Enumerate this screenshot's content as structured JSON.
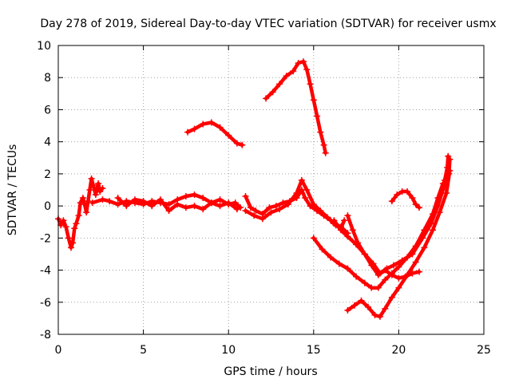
{
  "chart_data": {
    "type": "scatter",
    "title": "Day 278 of 2019, Sidereal Day-to-day VTEC variation (SDTVAR) for receiver usmx",
    "xlabel": "GPS time / hours",
    "ylabel": "SDTVAR / TECUs",
    "xlim": [
      0,
      25
    ],
    "ylim": [
      -8,
      10
    ],
    "xticks": [
      0,
      5,
      10,
      15,
      20,
      25
    ],
    "yticks": [
      -8,
      -6,
      -4,
      -2,
      0,
      2,
      4,
      6,
      8,
      10
    ],
    "grid": true,
    "legend": "none",
    "marker": "plus",
    "color": "#ff0000",
    "series": [
      {
        "points": [
          [
            0.0,
            -0.8
          ],
          [
            0.15,
            -1.2
          ],
          [
            0.3,
            -0.9
          ],
          [
            0.45,
            -1.3
          ],
          [
            0.6,
            -2.0
          ],
          [
            0.75,
            -2.6
          ],
          [
            0.85,
            -2.3
          ],
          [
            0.95,
            -1.4
          ],
          [
            1.05,
            -1.1
          ],
          [
            1.2,
            -0.6
          ],
          [
            1.3,
            0.2
          ],
          [
            1.45,
            0.5
          ],
          [
            1.55,
            0.1
          ],
          [
            1.65,
            -0.4
          ],
          [
            1.75,
            0.3
          ],
          [
            1.85,
            1.0
          ],
          [
            1.95,
            1.7
          ],
          [
            2.05,
            1.3
          ],
          [
            2.2,
            0.7
          ],
          [
            2.35,
            1.4
          ],
          [
            2.45,
            0.9
          ],
          [
            2.6,
            1.1
          ]
        ]
      },
      {
        "points": [
          [
            2.0,
            0.2
          ],
          [
            2.6,
            0.4
          ],
          [
            3.0,
            0.3
          ],
          [
            3.5,
            0.1
          ],
          [
            4.0,
            0.3
          ],
          [
            4.5,
            0.2
          ],
          [
            5.0,
            0.1
          ],
          [
            5.5,
            0.3
          ],
          [
            6.0,
            0.2
          ],
          [
            6.5,
            0.1
          ],
          [
            7.0,
            0.4
          ],
          [
            7.5,
            0.6
          ],
          [
            8.0,
            0.7
          ],
          [
            8.5,
            0.5
          ],
          [
            9.0,
            0.2
          ],
          [
            9.5,
            0.4
          ],
          [
            10.0,
            0.1
          ],
          [
            10.4,
            0.2
          ],
          [
            10.7,
            -0.1
          ]
        ]
      },
      {
        "points": [
          [
            3.5,
            0.5
          ],
          [
            4.0,
            0.0
          ],
          [
            4.5,
            0.4
          ],
          [
            5.0,
            0.3
          ],
          [
            5.5,
            0.0
          ],
          [
            6.0,
            0.4
          ],
          [
            6.5,
            -0.3
          ],
          [
            7.0,
            0.1
          ],
          [
            7.5,
            -0.1
          ],
          [
            8.0,
            0.0
          ],
          [
            8.5,
            -0.2
          ],
          [
            9.0,
            0.2
          ],
          [
            9.5,
            0.0
          ],
          [
            10.0,
            0.2
          ],
          [
            10.5,
            -0.2
          ]
        ]
      },
      {
        "points": [
          [
            11.0,
            0.6
          ],
          [
            11.3,
            -0.1
          ],
          [
            11.6,
            -0.3
          ],
          [
            12.0,
            -0.5
          ],
          [
            12.4,
            -0.1
          ],
          [
            12.8,
            0.0
          ],
          [
            13.2,
            0.2
          ],
          [
            13.6,
            0.3
          ],
          [
            14.0,
            0.5
          ],
          [
            14.3,
            1.0
          ],
          [
            14.5,
            0.5
          ],
          [
            14.8,
            0.0
          ],
          [
            15.2,
            -0.3
          ],
          [
            15.6,
            -0.6
          ],
          [
            16.0,
            -0.9
          ],
          [
            16.3,
            -1.2
          ],
          [
            16.6,
            -1.4
          ],
          [
            16.8,
            -0.9
          ]
        ]
      },
      {
        "points": [
          [
            11.0,
            -0.3
          ],
          [
            11.5,
            -0.6
          ],
          [
            12.0,
            -0.8
          ],
          [
            12.5,
            -0.4
          ],
          [
            13.0,
            -0.2
          ],
          [
            13.5,
            0.1
          ],
          [
            14.0,
            0.8
          ],
          [
            14.3,
            1.6
          ],
          [
            14.6,
            1.0
          ],
          [
            15.0,
            0.1
          ],
          [
            15.4,
            -0.3
          ],
          [
            15.8,
            -0.7
          ],
          [
            16.2,
            -1.1
          ],
          [
            16.6,
            -1.3
          ],
          [
            17.0,
            -1.7
          ]
        ]
      },
      {
        "points": [
          [
            7.6,
            4.6
          ],
          [
            8.0,
            4.8
          ],
          [
            8.5,
            5.1
          ],
          [
            9.0,
            5.2
          ],
          [
            9.5,
            4.9
          ],
          [
            10.0,
            4.4
          ],
          [
            10.5,
            3.9
          ],
          [
            10.8,
            3.8
          ]
        ]
      },
      {
        "points": [
          [
            12.2,
            6.7
          ],
          [
            12.6,
            7.1
          ],
          [
            13.0,
            7.6
          ],
          [
            13.4,
            8.1
          ],
          [
            13.8,
            8.4
          ],
          [
            14.1,
            8.9
          ],
          [
            14.4,
            9.0
          ],
          [
            14.6,
            8.5
          ],
          [
            14.8,
            7.6
          ],
          [
            15.0,
            6.6
          ],
          [
            15.2,
            5.6
          ],
          [
            15.4,
            4.6
          ],
          [
            15.6,
            3.8
          ],
          [
            15.7,
            3.3
          ]
        ]
      },
      {
        "points": [
          [
            15.0,
            -2.0
          ],
          [
            15.5,
            -2.7
          ],
          [
            16.0,
            -3.2
          ],
          [
            16.5,
            -3.6
          ],
          [
            17.0,
            -3.9
          ],
          [
            17.5,
            -4.4
          ],
          [
            18.0,
            -4.8
          ],
          [
            18.4,
            -5.1
          ],
          [
            18.8,
            -5.1
          ],
          [
            19.2,
            -4.6
          ],
          [
            19.6,
            -4.2
          ],
          [
            20.0,
            -3.8
          ],
          [
            20.5,
            -3.2
          ],
          [
            21.0,
            -2.5
          ],
          [
            21.5,
            -1.5
          ],
          [
            22.0,
            -0.5
          ],
          [
            22.3,
            0.5
          ],
          [
            22.6,
            1.4
          ]
        ]
      },
      {
        "points": [
          [
            16.2,
            -0.9
          ],
          [
            16.6,
            -1.5
          ],
          [
            17.0,
            -1.9
          ],
          [
            17.5,
            -2.4
          ],
          [
            18.0,
            -3.0
          ],
          [
            18.5,
            -3.6
          ],
          [
            18.9,
            -4.2
          ],
          [
            19.3,
            -3.9
          ],
          [
            19.7,
            -3.7
          ],
          [
            20.2,
            -3.4
          ],
          [
            20.8,
            -3.0
          ],
          [
            21.4,
            -2.0
          ],
          [
            21.9,
            -1.1
          ],
          [
            22.3,
            0.0
          ],
          [
            22.6,
            1.0
          ],
          [
            22.8,
            1.7
          ]
        ]
      },
      {
        "points": [
          [
            17.0,
            -0.6
          ],
          [
            17.3,
            -1.5
          ],
          [
            17.6,
            -2.3
          ],
          [
            18.0,
            -3.0
          ],
          [
            18.4,
            -3.7
          ],
          [
            18.8,
            -4.3
          ],
          [
            19.2,
            -4.0
          ],
          [
            19.6,
            -4.3
          ],
          [
            20.0,
            -4.5
          ],
          [
            20.4,
            -4.4
          ],
          [
            20.8,
            -4.2
          ],
          [
            21.2,
            -4.1
          ]
        ]
      },
      {
        "points": [
          [
            17.0,
            -6.5
          ],
          [
            17.4,
            -6.2
          ],
          [
            17.8,
            -5.9
          ],
          [
            18.2,
            -6.3
          ],
          [
            18.6,
            -6.8
          ],
          [
            18.9,
            -6.9
          ],
          [
            19.2,
            -6.4
          ],
          [
            19.6,
            -5.7
          ],
          [
            20.0,
            -5.1
          ],
          [
            20.5,
            -4.3
          ],
          [
            21.0,
            -3.5
          ],
          [
            21.5,
            -2.6
          ],
          [
            22.0,
            -1.5
          ],
          [
            22.4,
            -0.4
          ],
          [
            22.8,
            0.8
          ],
          [
            23.0,
            2.2
          ]
        ]
      },
      {
        "points": [
          [
            19.6,
            0.3
          ],
          [
            19.9,
            0.7
          ],
          [
            20.2,
            0.9
          ],
          [
            20.5,
            0.9
          ],
          [
            20.8,
            0.5
          ],
          [
            21.0,
            0.1
          ],
          [
            21.2,
            -0.1
          ]
        ]
      },
      {
        "points": [
          [
            22.5,
            0.8
          ],
          [
            22.7,
            1.6
          ],
          [
            22.85,
            2.4
          ],
          [
            22.9,
            3.1
          ],
          [
            23.0,
            2.9
          ],
          [
            22.95,
            2.0
          ]
        ]
      }
    ]
  }
}
